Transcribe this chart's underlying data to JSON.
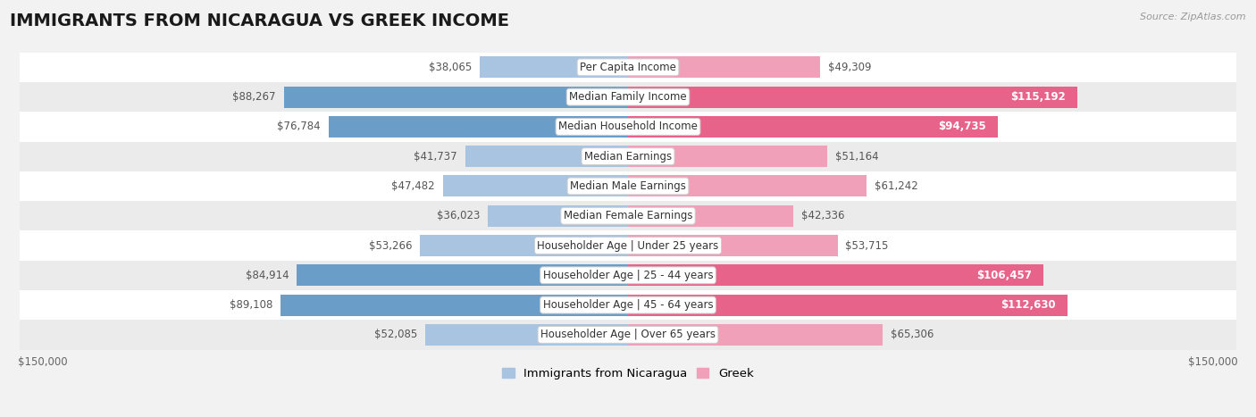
{
  "title": "IMMIGRANTS FROM NICARAGUA VS GREEK INCOME",
  "source": "Source: ZipAtlas.com",
  "categories": [
    "Per Capita Income",
    "Median Family Income",
    "Median Household Income",
    "Median Earnings",
    "Median Male Earnings",
    "Median Female Earnings",
    "Householder Age | Under 25 years",
    "Householder Age | 25 - 44 years",
    "Householder Age | 45 - 64 years",
    "Householder Age | Over 65 years"
  ],
  "nicaragua_values": [
    38065,
    88267,
    76784,
    41737,
    47482,
    36023,
    53266,
    84914,
    89108,
    52085
  ],
  "greek_values": [
    49309,
    115192,
    94735,
    51164,
    61242,
    42336,
    53715,
    106457,
    112630,
    65306
  ],
  "nicaragua_labels": [
    "$38,065",
    "$88,267",
    "$76,784",
    "$41,737",
    "$47,482",
    "$36,023",
    "$53,266",
    "$84,914",
    "$89,108",
    "$52,085"
  ],
  "greek_labels": [
    "$49,309",
    "$115,192",
    "$94,735",
    "$51,164",
    "$61,242",
    "$42,336",
    "$53,715",
    "$106,457",
    "$112,630",
    "$65,306"
  ],
  "nicaragua_color_light": "#a8c4e0",
  "nicaragua_color_dark": "#6b9dc9",
  "greek_color_light": "#f0a0b8",
  "greek_color_dark": "#e8638a",
  "max_val": 150000,
  "background_color": "#f2f2f2",
  "row_colors": [
    "#ffffff",
    "#ebebeb"
  ],
  "title_fontsize": 14,
  "label_fontsize": 8.5,
  "legend_fontsize": 9.5,
  "large_threshold_greek": 80000,
  "large_threshold_nic": 70000
}
